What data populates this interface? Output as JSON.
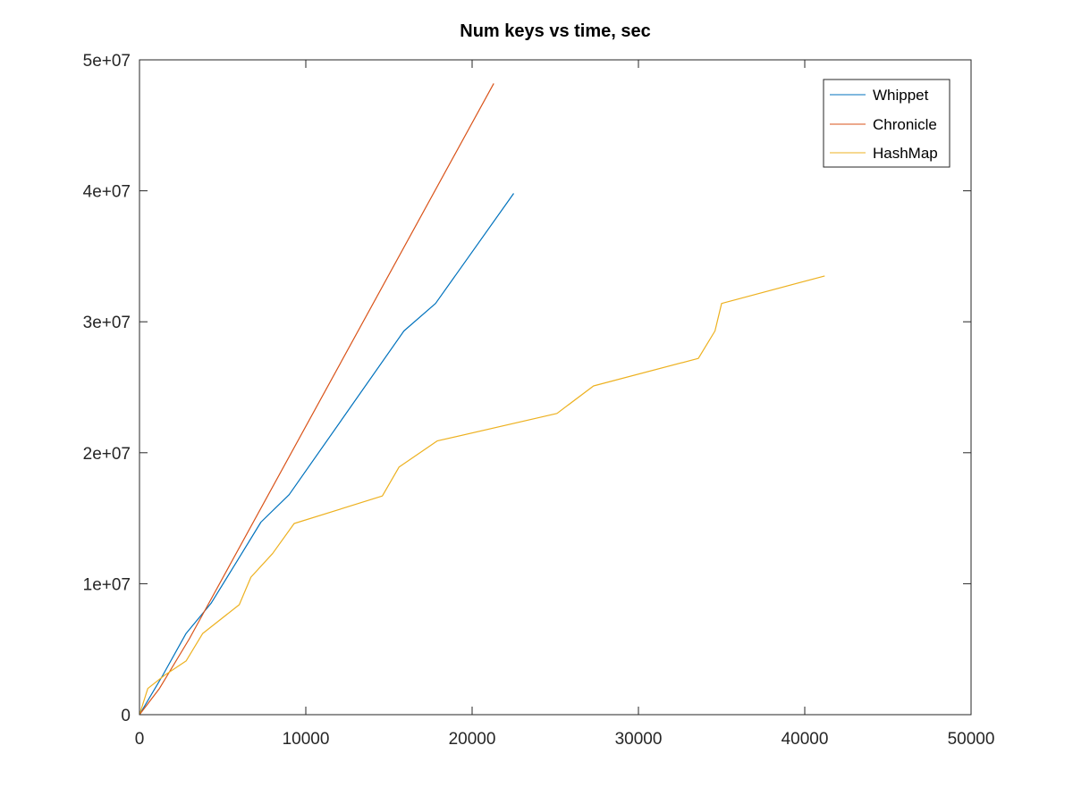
{
  "chart_data": {
    "type": "line",
    "title": "Num keys vs time, sec",
    "xlabel": "",
    "ylabel": "",
    "xlim": [
      0,
      50000
    ],
    "ylim": [
      0,
      50000000
    ],
    "x_ticks": [
      0,
      10000,
      20000,
      30000,
      40000,
      50000
    ],
    "x_tick_labels": [
      "0",
      "10000",
      "20000",
      "30000",
      "40000",
      "50000"
    ],
    "y_ticks": [
      0,
      10000000,
      20000000,
      30000000,
      40000000,
      50000000
    ],
    "y_tick_labels": [
      "0",
      "1e+07",
      "2e+07",
      "3e+07",
      "4e+07",
      "5e+07"
    ],
    "grid": false,
    "legend_position": "top-right",
    "series": [
      {
        "name": "Whippet",
        "color": "#0072BD",
        "points": [
          [
            0,
            0
          ],
          [
            1400,
            3000000
          ],
          [
            2800,
            6200000
          ],
          [
            4300,
            8500000
          ],
          [
            6000,
            12000000
          ],
          [
            7300,
            14700000
          ],
          [
            9000,
            16800000
          ],
          [
            15900,
            29300000
          ],
          [
            17800,
            31400000
          ],
          [
            22500,
            39800000
          ]
        ]
      },
      {
        "name": "Chronicle",
        "color": "#D95319",
        "points": [
          [
            0,
            0
          ],
          [
            1200,
            2000000
          ],
          [
            3000,
            5800000
          ],
          [
            21300,
            48200000
          ]
        ]
      },
      {
        "name": "HashMap",
        "color": "#EDB120",
        "points": [
          [
            0,
            0
          ],
          [
            500,
            2000000
          ],
          [
            1500,
            3000000
          ],
          [
            2800,
            4100000
          ],
          [
            3800,
            6200000
          ],
          [
            6000,
            8400000
          ],
          [
            6700,
            10500000
          ],
          [
            8000,
            12300000
          ],
          [
            9300,
            14600000
          ],
          [
            14600,
            16700000
          ],
          [
            15600,
            18900000
          ],
          [
            17900,
            20900000
          ],
          [
            25100,
            23000000
          ],
          [
            27300,
            25100000
          ],
          [
            33600,
            27200000
          ],
          [
            34600,
            29300000
          ],
          [
            35000,
            31400000
          ],
          [
            41200,
            33500000
          ]
        ]
      }
    ]
  }
}
